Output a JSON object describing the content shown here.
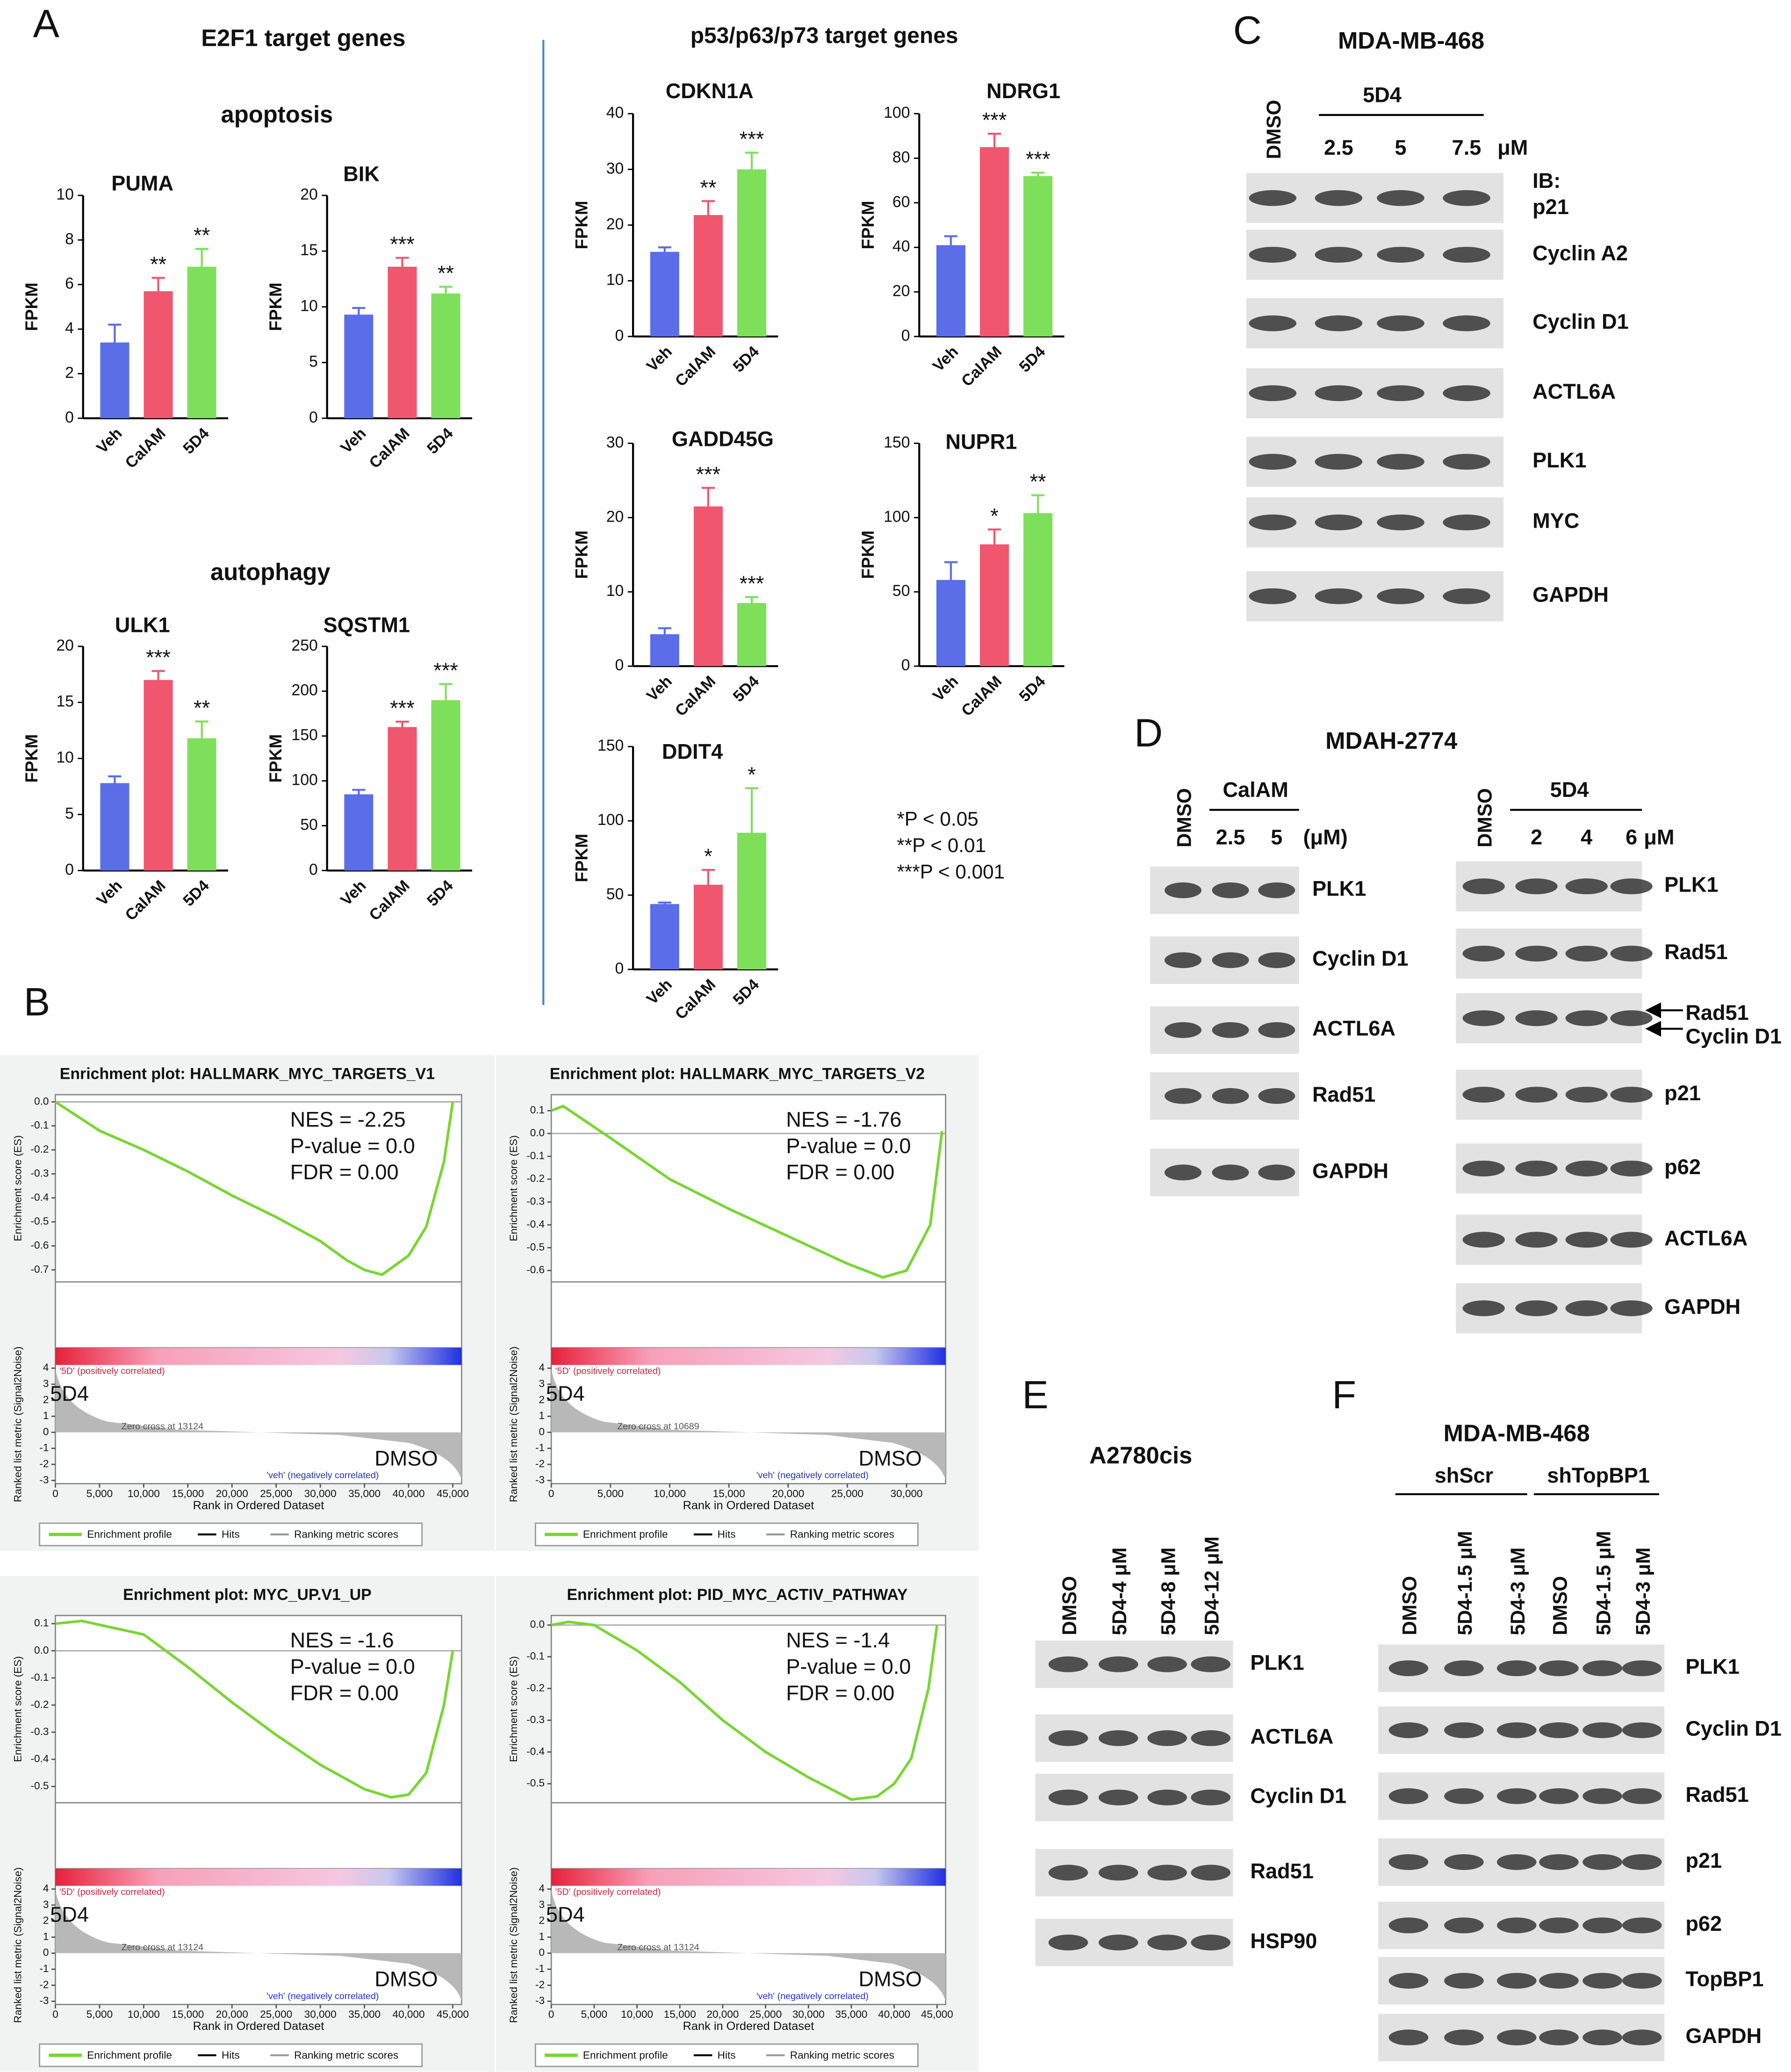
{
  "chart_data": [
    {
      "type": "bar",
      "title": "PUMA",
      "ylabel": "FPKM",
      "categories": [
        "Veh",
        "CalAM",
        "5D4"
      ],
      "values": [
        3.4,
        5.7,
        6.8
      ],
      "errors": [
        0.8,
        0.6,
        0.8
      ],
      "annotations": [
        null,
        "**",
        "**"
      ],
      "colors": [
        "#5b6ee8",
        "#f0566e",
        "#7ee05a"
      ],
      "ylim": [
        0,
        10
      ],
      "yticks": [
        0,
        2,
        4,
        6,
        8,
        10
      ]
    },
    {
      "type": "bar",
      "title": "BIK",
      "ylabel": "FPKM",
      "categories": [
        "Veh",
        "CalAM",
        "5D4"
      ],
      "values": [
        9.3,
        13.6,
        11.2
      ],
      "errors": [
        0.6,
        0.8,
        0.6
      ],
      "annotations": [
        null,
        "***",
        "**"
      ],
      "colors": [
        "#5b6ee8",
        "#f0566e",
        "#7ee05a"
      ],
      "ylim": [
        0,
        20
      ],
      "yticks": [
        0,
        5,
        10,
        15,
        20
      ]
    },
    {
      "type": "bar",
      "title": "ULK1",
      "ylabel": "FPKM",
      "categories": [
        "Veh",
        "CalAM",
        "5D4"
      ],
      "values": [
        7.8,
        17.0,
        11.8
      ],
      "errors": [
        0.6,
        0.8,
        1.5
      ],
      "annotations": [
        null,
        "***",
        "**"
      ],
      "colors": [
        "#5b6ee8",
        "#f0566e",
        "#7ee05a"
      ],
      "ylim": [
        0,
        20
      ],
      "yticks": [
        0,
        5,
        10,
        15,
        20
      ]
    },
    {
      "type": "bar",
      "title": "SQSTM1",
      "ylabel": "FPKM",
      "categories": [
        "Veh",
        "CalAM",
        "5D4"
      ],
      "values": [
        85,
        160,
        190
      ],
      "errors": [
        5,
        6,
        18
      ],
      "annotations": [
        null,
        "***",
        "***"
      ],
      "colors": [
        "#5b6ee8",
        "#f0566e",
        "#7ee05a"
      ],
      "ylim": [
        0,
        250
      ],
      "yticks": [
        0,
        50,
        100,
        150,
        200,
        250
      ]
    },
    {
      "type": "bar",
      "title": "CDKN1A",
      "ylabel": "FPKM",
      "categories": [
        "Veh",
        "CalAM",
        "5D4"
      ],
      "values": [
        15.2,
        21.8,
        30
      ],
      "errors": [
        0.8,
        2.5,
        3
      ],
      "annotations": [
        null,
        "**",
        "***"
      ],
      "colors": [
        "#5b6ee8",
        "#f0566e",
        "#7ee05a"
      ],
      "ylim": [
        0,
        40
      ],
      "yticks": [
        0,
        10,
        20,
        30,
        40
      ]
    },
    {
      "type": "bar",
      "title": "NDRG1",
      "ylabel": "FPKM",
      "categories": [
        "Veh",
        "CalAM",
        "5D4"
      ],
      "values": [
        41,
        85,
        72
      ],
      "errors": [
        4,
        6,
        1.5
      ],
      "annotations": [
        null,
        "***",
        "***"
      ],
      "colors": [
        "#5b6ee8",
        "#f0566e",
        "#7ee05a"
      ],
      "ylim": [
        0,
        100
      ],
      "yticks": [
        0,
        20,
        40,
        60,
        80,
        100
      ]
    },
    {
      "type": "bar",
      "title": "GADD45G",
      "ylabel": "FPKM",
      "categories": [
        "Veh",
        "CalAM",
        "5D4"
      ],
      "values": [
        4.3,
        21.5,
        8.5
      ],
      "errors": [
        0.8,
        2.5,
        0.8
      ],
      "annotations": [
        null,
        "***",
        "***"
      ],
      "colors": [
        "#5b6ee8",
        "#f0566e",
        "#7ee05a"
      ],
      "ylim": [
        0,
        30
      ],
      "yticks": [
        0,
        10,
        20,
        30
      ]
    },
    {
      "type": "bar",
      "title": "NUPR1",
      "ylabel": "FPKM",
      "categories": [
        "Veh",
        "CalAM",
        "5D4"
      ],
      "values": [
        58,
        82,
        103
      ],
      "errors": [
        12,
        10,
        12
      ],
      "annotations": [
        null,
        "*",
        "**"
      ],
      "colors": [
        "#5b6ee8",
        "#f0566e",
        "#7ee05a"
      ],
      "ylim": [
        0,
        150
      ],
      "yticks": [
        0,
        50,
        100,
        150
      ]
    },
    {
      "type": "bar",
      "title": "DDIT4",
      "ylabel": "FPKM",
      "categories": [
        "Veh",
        "CalAM",
        "5D4"
      ],
      "values": [
        44,
        57,
        92
      ],
      "errors": [
        1,
        10,
        30
      ],
      "annotations": [
        null,
        "*",
        "*"
      ],
      "colors": [
        "#5b6ee8",
        "#f0566e",
        "#7ee05a"
      ],
      "ylim": [
        0,
        150
      ],
      "yticks": [
        0,
        50,
        100,
        150
      ]
    },
    {
      "type": "line",
      "title": "Enrichment plot: HALLMARK_MYC_TARGETS_V1",
      "ylabel": "Enrichment score (ES)",
      "xlabel": "Rank in Ordered Dataset",
      "metric_ylabel": "Ranked list metric (Signal2Noise)",
      "x": [
        0,
        5000,
        10000,
        15000,
        20000,
        25000,
        30000,
        33000,
        35000,
        37000,
        40000,
        42000,
        44000,
        45000
      ],
      "series": [
        {
          "name": "Enrichment profile",
          "color": "#78d630",
          "values": [
            0,
            -0.12,
            -0.2,
            -0.29,
            -0.39,
            -0.48,
            -0.58,
            -0.66,
            -0.7,
            -0.72,
            -0.64,
            -0.52,
            -0.25,
            0
          ]
        }
      ],
      "legend_extra": [
        "Hits",
        "Ranking metric scores"
      ],
      "annotations": [
        "NES = -2.25",
        "P-value = 0.0",
        "FDR = 0.00"
      ],
      "top_group": "5D4",
      "bottom_group": "DMSO",
      "positive_label": "'5D' (positively correlated)",
      "negative_label": "'veh' (negatively correlated)",
      "zero_cross": "Zero cross at 13124",
      "xlim": [
        0,
        46000
      ],
      "xticks": [
        0,
        {
          "value": 5000,
          "label": "5,000"
        },
        {
          "value": 10000,
          "label": "10,000"
        },
        {
          "value": 15000,
          "label": "15,000"
        },
        {
          "value": 20000,
          "label": "20,000"
        },
        {
          "value": 25000,
          "label": "25,000"
        },
        {
          "value": 30000,
          "label": "30,000"
        },
        {
          "value": 35000,
          "label": "35,000"
        },
        {
          "value": 40000,
          "label": "40,000"
        },
        {
          "value": 45000,
          "label": "45,000"
        }
      ],
      "ylim": [
        -0.75,
        0.03
      ],
      "yticks": [
        {
          "value": 0,
          "label": "0.0"
        },
        -0.1,
        -0.2,
        -0.3,
        -0.4,
        -0.5,
        -0.6,
        -0.7
      ],
      "metric_ylim": [
        -3.2,
        4.2
      ],
      "metric_yticks": [
        4,
        3,
        2,
        1,
        0,
        -1,
        -2,
        -3
      ]
    },
    {
      "type": "line",
      "title": "Enrichment plot: HALLMARK_MYC_TARGETS_V2",
      "ylabel": "Enrichment score (ES)",
      "xlabel": "Rank in Ordered Dataset",
      "metric_ylabel": "Ranked list metric (Signal2Noise)",
      "x": [
        0,
        1000,
        5000,
        10000,
        15000,
        20000,
        25000,
        28000,
        30000,
        32000,
        33000
      ],
      "series": [
        {
          "name": "Enrichment profile",
          "color": "#78d630",
          "values": [
            0.1,
            0.12,
            -0.02,
            -0.2,
            -0.33,
            -0.45,
            -0.57,
            -0.63,
            -0.6,
            -0.4,
            0.01
          ]
        }
      ],
      "legend_extra": [
        "Hits",
        "Ranking metric scores"
      ],
      "annotations": [
        "NES = -1.76",
        "P-value = 0.0",
        "FDR = 0.00"
      ],
      "top_group": "5D4",
      "bottom_group": "DMSO",
      "positive_label": "'5D' (positively correlated)",
      "negative_label": "'veh' (negatively correlated)",
      "zero_cross": "Zero cross at 10689",
      "xlim": [
        0,
        33300
      ],
      "xticks": [
        0,
        {
          "value": 5000,
          "label": "5,000"
        },
        {
          "value": 10000,
          "label": "10,000"
        },
        {
          "value": 15000,
          "label": "15,000"
        },
        {
          "value": 20000,
          "label": "20,000"
        },
        {
          "value": 25000,
          "label": "25,000"
        },
        {
          "value": 30000,
          "label": "30,000"
        }
      ],
      "ylim": [
        -0.65,
        0.17
      ],
      "yticks": [
        0.1,
        {
          "value": 0,
          "label": "0.0"
        },
        -0.1,
        -0.2,
        -0.3,
        -0.4,
        -0.5,
        -0.6
      ],
      "metric_ylim": [
        -3.2,
        4.2
      ],
      "metric_yticks": [
        4,
        3,
        2,
        1,
        0,
        -1,
        -2,
        -3
      ]
    },
    {
      "type": "line",
      "title": "Enrichment plot: MYC_UP.V1_UP",
      "ylabel": "Enrichment score (ES)",
      "xlabel": "Rank in Ordered Dataset",
      "metric_ylabel": "Ranked list metric (Signal2Noise)",
      "x": [
        0,
        3000,
        10000,
        15000,
        20000,
        25000,
        30000,
        35000,
        38000,
        40000,
        42000,
        44000,
        45000
      ],
      "series": [
        {
          "name": "Enrichment profile",
          "color": "#78d630",
          "values": [
            0.1,
            0.11,
            0.06,
            -0.06,
            -0.19,
            -0.31,
            -0.42,
            -0.51,
            -0.54,
            -0.53,
            -0.45,
            -0.2,
            0
          ]
        }
      ],
      "legend_extra": [
        "Hits",
        "Ranking metric scores"
      ],
      "annotations": [
        "NES = -1.6",
        "P-value = 0.0",
        "FDR = 0.00"
      ],
      "top_group": "5D4",
      "bottom_group": "DMSO",
      "positive_label": "'5D' (positively correlated)",
      "negative_label": "'veh' (negatively correlated)",
      "zero_cross": "Zero cross at 13124",
      "xlim": [
        0,
        46000
      ],
      "xticks": [
        0,
        {
          "value": 5000,
          "label": "5,000"
        },
        {
          "value": 10000,
          "label": "10,000"
        },
        {
          "value": 15000,
          "label": "15,000"
        },
        {
          "value": 20000,
          "label": "20,000"
        },
        {
          "value": 25000,
          "label": "25,000"
        },
        {
          "value": 30000,
          "label": "30,000"
        },
        {
          "value": 35000,
          "label": "35,000"
        },
        {
          "value": 40000,
          "label": "40,000"
        },
        {
          "value": 45000,
          "label": "45,000"
        }
      ],
      "ylim": [
        -0.56,
        0.13
      ],
      "yticks": [
        0.1,
        {
          "value": 0,
          "label": "0.0"
        },
        -0.1,
        -0.2,
        -0.3,
        -0.4,
        -0.5
      ],
      "metric_ylim": [
        -3.2,
        4.2
      ],
      "metric_yticks": [
        4,
        3,
        2,
        1,
        0,
        -1,
        -2,
        -3
      ]
    },
    {
      "type": "line",
      "title": "Enrichment plot: PID_MYC_ACTIV_PATHWAY",
      "ylabel": "Enrichment score (ES)",
      "xlabel": "Rank in Ordered Dataset",
      "metric_ylabel": "Ranked list metric (Signal2Noise)",
      "x": [
        0,
        2000,
        5000,
        10000,
        15000,
        20000,
        25000,
        30000,
        35000,
        38000,
        40000,
        42000,
        44000,
        45000
      ],
      "series": [
        {
          "name": "Enrichment profile",
          "color": "#78d630",
          "values": [
            0,
            0.01,
            0,
            -0.08,
            -0.18,
            -0.3,
            -0.4,
            -0.48,
            -0.55,
            -0.54,
            -0.5,
            -0.42,
            -0.2,
            0
          ]
        }
      ],
      "legend_extra": [
        "Hits",
        "Ranking metric scores"
      ],
      "annotations": [
        "NES = -1.4",
        "P-value = 0.0",
        "FDR = 0.00"
      ],
      "top_group": "5D4",
      "bottom_group": "DMSO",
      "positive_label": "'5D' (positively correlated)",
      "negative_label": "'veh' (negatively correlated)",
      "zero_cross": "Zero cross at 13124",
      "xlim": [
        0,
        46000
      ],
      "xticks": [
        0,
        {
          "value": 5000,
          "label": "5,000"
        },
        {
          "value": 10000,
          "label": "10,000"
        },
        {
          "value": 15000,
          "label": "15,000"
        },
        {
          "value": 20000,
          "label": "20,000"
        },
        {
          "value": 25000,
          "label": "25,000"
        },
        {
          "value": 30000,
          "label": "30,000"
        },
        {
          "value": 35000,
          "label": "35,000"
        },
        {
          "value": 40000,
          "label": "40,000"
        },
        {
          "value": 45000,
          "label": "45,000"
        }
      ],
      "ylim": [
        -0.56,
        0.03
      ],
      "yticks": [
        {
          "value": 0,
          "label": "0.0"
        },
        -0.1,
        -0.2,
        -0.3,
        -0.4,
        -0.5
      ],
      "metric_ylim": [
        -3.2,
        4.2
      ],
      "metric_yticks": [
        4,
        3,
        2,
        1,
        0,
        -1,
        -2,
        -3
      ]
    }
  ],
  "panel_labels": [
    "A",
    "B",
    "C",
    "D",
    "E",
    "F"
  ],
  "headings": {
    "e2f1": "E2F1 target genes",
    "apoptosis": "apoptosis",
    "autophagy": "autophagy",
    "p53": "p53/p63/p73 target genes"
  },
  "p_legend": [
    "*P < 0.05",
    "**P < 0.01",
    "***P < 0.001"
  ],
  "blot_c": {
    "title": "MDA-MB-468",
    "treatment": "5D4",
    "lanes": [
      "DMSO",
      "2.5",
      "5",
      "7.5"
    ],
    "unit": "μM",
    "ib": "IB:",
    "rows": [
      [
        "p21"
      ],
      [
        "Cyclin A2"
      ],
      [
        "Cyclin D1"
      ],
      [
        "ACTL6A"
      ],
      [
        "PLK1"
      ],
      [
        "MYC"
      ],
      [
        "GAPDH"
      ]
    ]
  },
  "blot_d": {
    "title": "MDAH-2774",
    "left": {
      "treatment": "CalAM",
      "lanes": [
        "DMSO",
        "2.5",
        "5"
      ],
      "unit": "(μM)",
      "rows": [
        [
          "PLK1"
        ],
        [
          "Cyclin D1"
        ],
        [
          "ACTL6A"
        ],
        [
          "Rad51"
        ],
        [
          "GAPDH"
        ]
      ]
    },
    "right": {
      "treatment": "5D4",
      "lanes": [
        "DMSO",
        "2",
        "4",
        "6"
      ],
      "unit": "μM",
      "rows": [
        [
          "PLK1"
        ],
        [
          "Rad51"
        ],
        [
          "Rad51",
          "Cyclin D1"
        ],
        [
          "p21"
        ],
        [
          "p62"
        ],
        [
          "ACTL6A"
        ],
        [
          "GAPDH"
        ]
      ]
    }
  },
  "blot_e": {
    "title": "A2780cis",
    "lanes": [
      "DMSO",
      "5D4-4 μM",
      "5D4-8 μM",
      "5D4-12 μM"
    ],
    "rows": [
      [
        "PLK1"
      ],
      [
        "ACTL6A"
      ],
      [
        "Cyclin D1"
      ],
      [
        "Rad51"
      ],
      [
        "HSP90"
      ]
    ]
  },
  "blot_f": {
    "title": "MDA-MB-468",
    "groups": [
      "shScr",
      "shTopBP1"
    ],
    "lanes": [
      "DMSO",
      "5D4-1.5 μM",
      "5D4-3 μM",
      "DMSO",
      "5D4-1.5 μM",
      "5D4-3 μM"
    ],
    "rows": [
      [
        "PLK1"
      ],
      [
        "Cyclin D1"
      ],
      [
        "Rad51"
      ],
      [
        "p21"
      ],
      [
        "p62"
      ],
      [
        "TopBP1"
      ],
      [
        "GAPDH"
      ]
    ]
  }
}
